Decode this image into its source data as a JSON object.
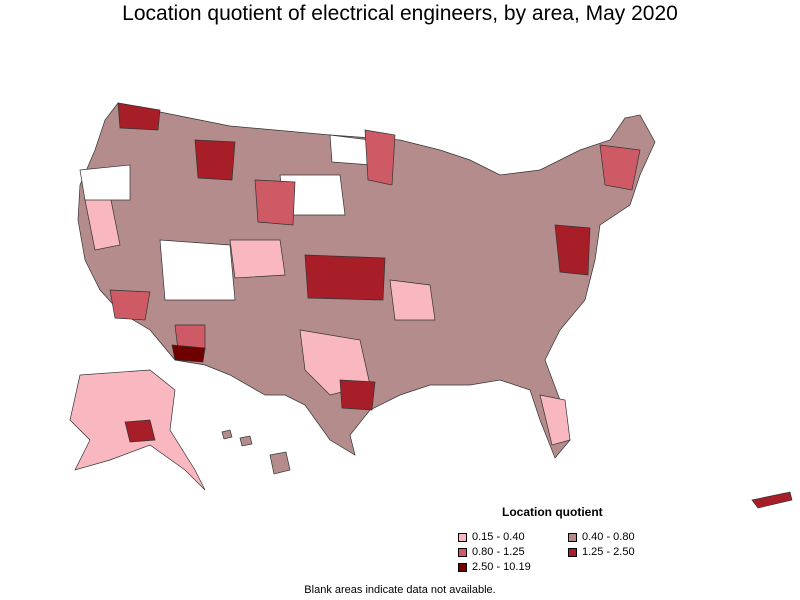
{
  "title": "Location quotient of electrical engineers, by area, May 2020",
  "legend": {
    "title": "Location quotient",
    "items": [
      {
        "label": "0.15 - 0.40",
        "color": "#f9b8c0"
      },
      {
        "label": "0.40 - 0.80",
        "color": "#b48c8c"
      },
      {
        "label": "0.80 - 1.25",
        "color": "#cd5a64"
      },
      {
        "label": "1.25 - 2.50",
        "color": "#a81e28"
      },
      {
        "label": "2.50 - 10.19",
        "color": "#6e0000"
      }
    ]
  },
  "footnote": "Blank areas indicate data not available."
}
